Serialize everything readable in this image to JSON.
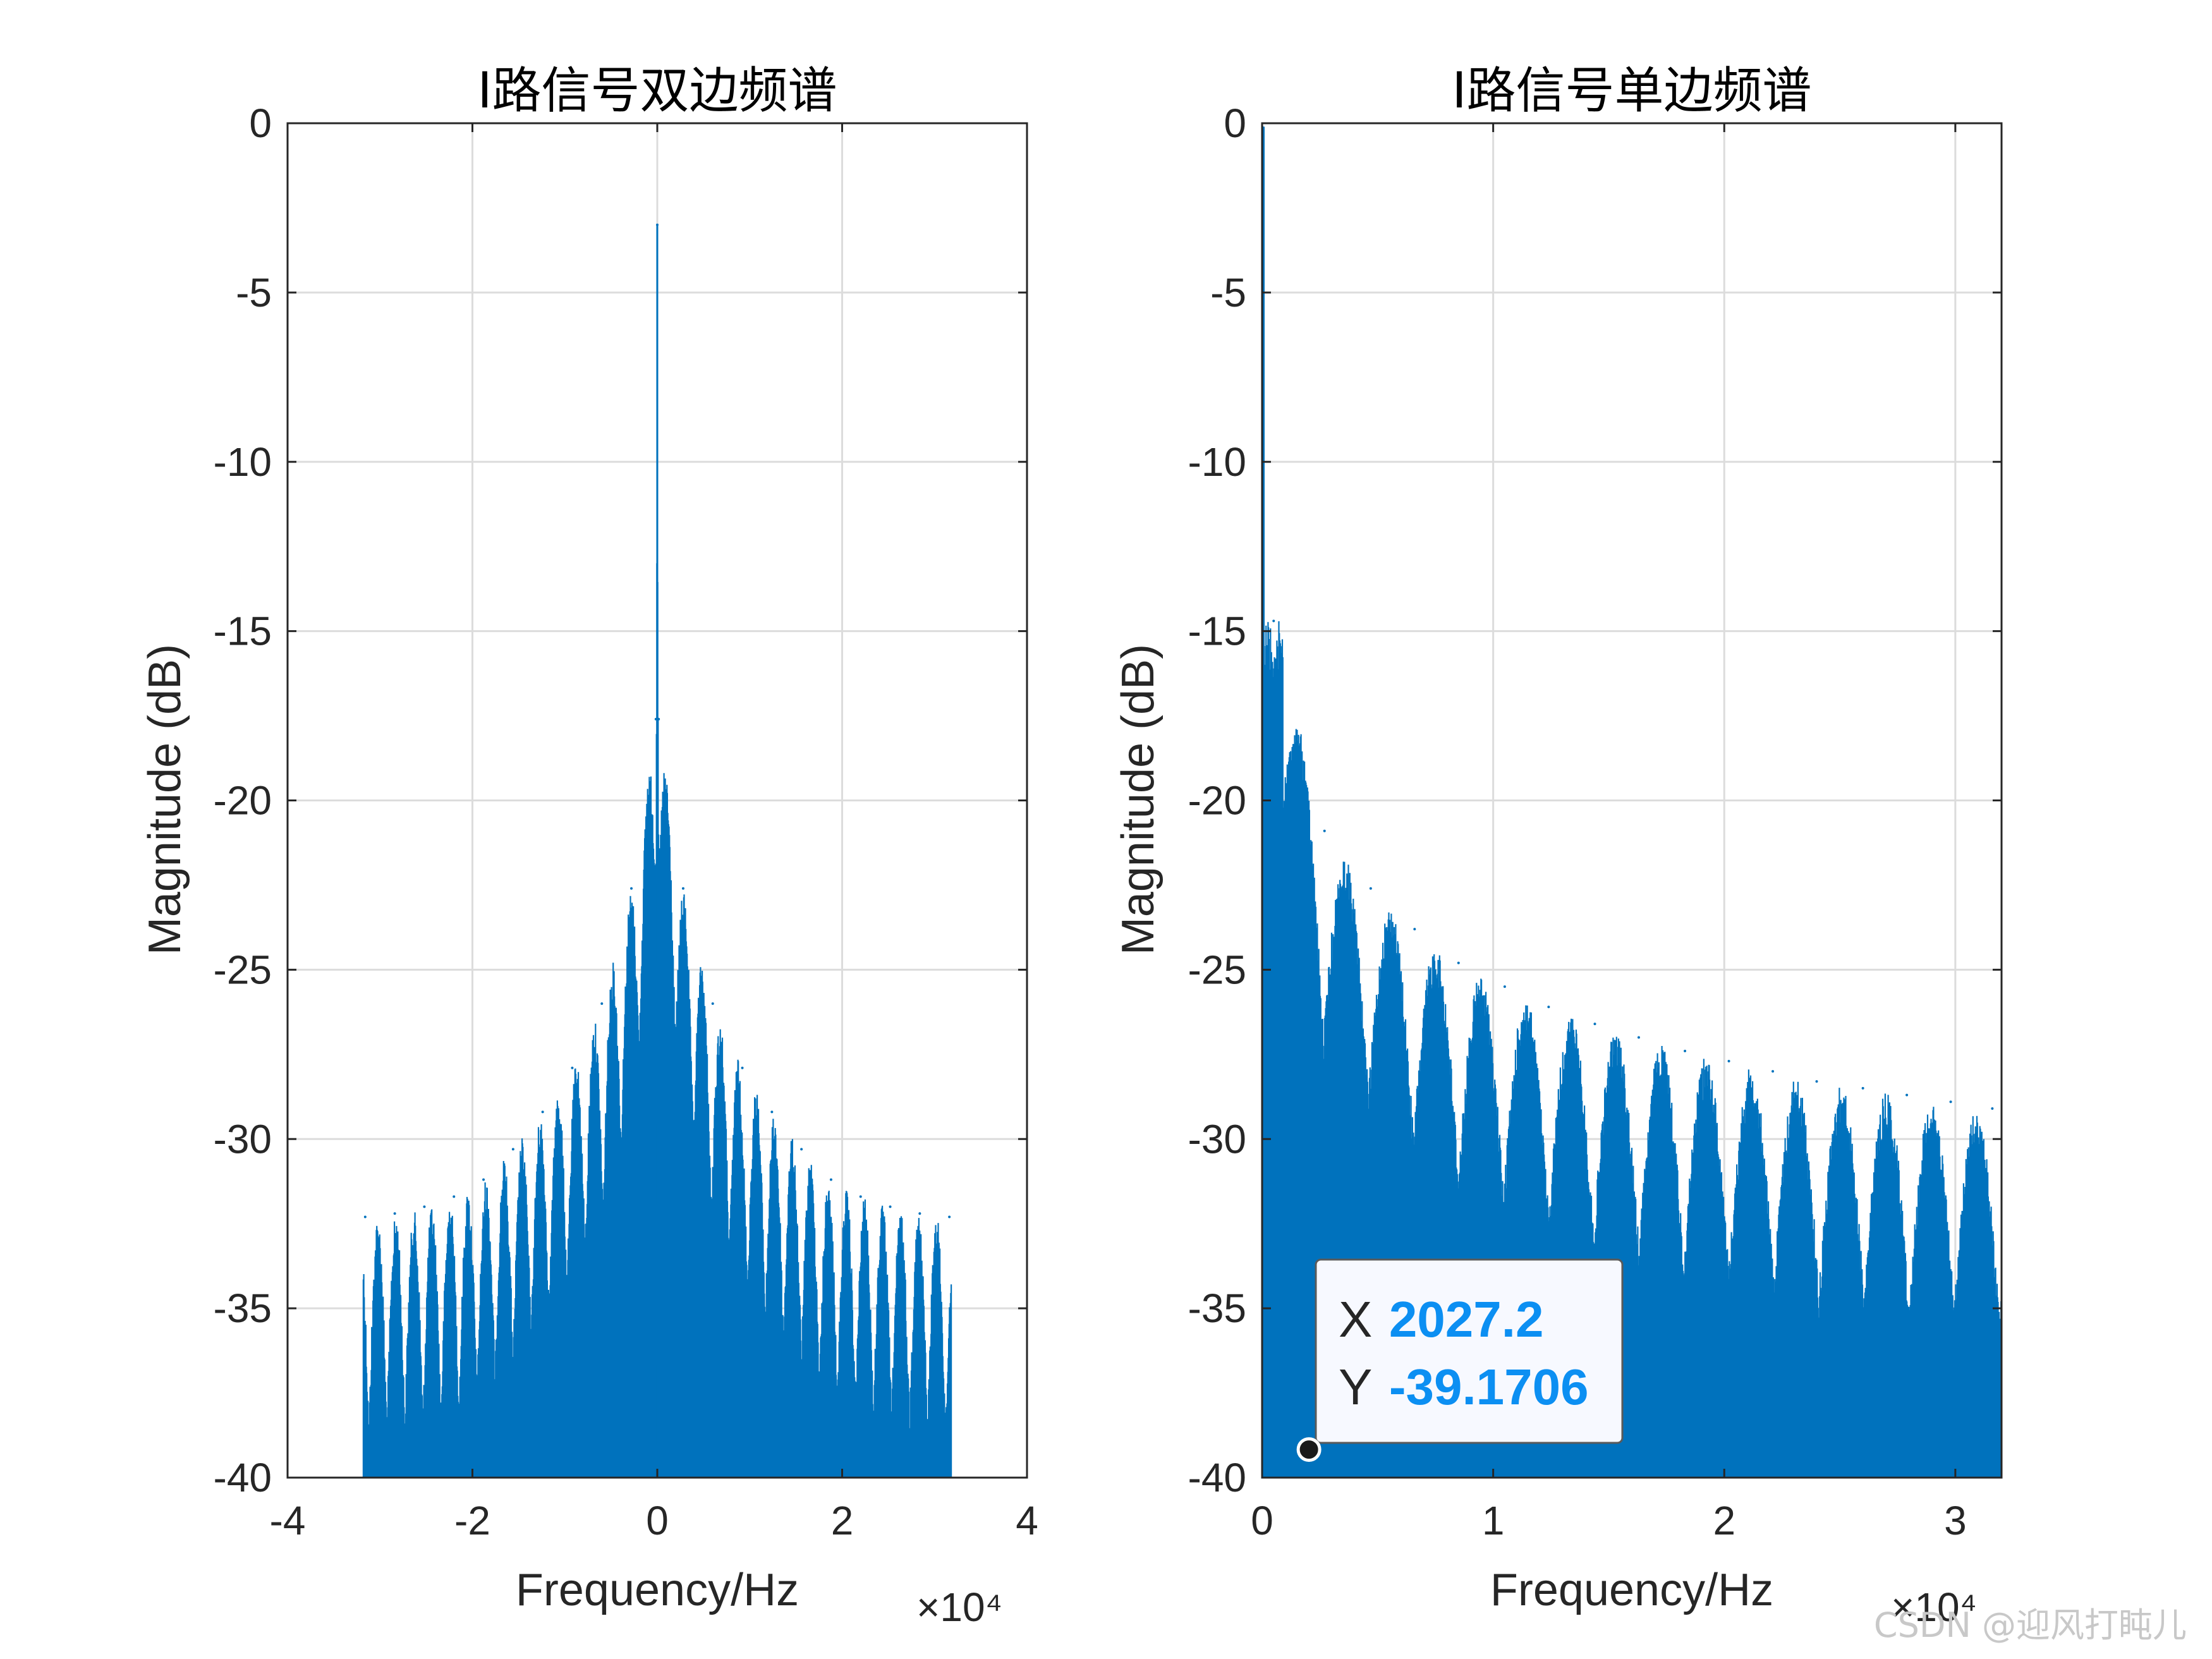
{
  "chart_data": [
    {
      "type": "line",
      "title": "I路信号双边频谱",
      "xlabel": "Frequency/Hz",
      "ylabel": "Magnitude (dB)",
      "x_multiplier": "×10⁴",
      "xlim": [
        -40000,
        40000
      ],
      "ylim": [
        -40,
        0
      ],
      "xticks": [
        -40000,
        -20000,
        0,
        20000,
        40000
      ],
      "xtick_labels": [
        "-4",
        "-2",
        "0",
        "2",
        "4"
      ],
      "yticks": [
        0,
        -5,
        -10,
        -15,
        -20,
        -25,
        -30,
        -35,
        -40
      ],
      "ytick_labels": [
        "0",
        "-5",
        "-10",
        "-15",
        "-20",
        "-25",
        "-30",
        "-35",
        "-40"
      ],
      "grid": true,
      "line_color": "#0072BD",
      "series": [
        {
          "x": [
            -31600,
            -28400,
            -25200,
            -22000,
            -18800,
            -15600,
            -12400,
            -9200,
            -6000,
            -2800,
            -150,
            0,
            150,
            2800,
            6000,
            9200,
            12400,
            15600,
            18800,
            22000,
            25200,
            28400,
            31600
          ],
          "y": [
            -32.3,
            -32.2,
            -32.0,
            -31.7,
            -31.2,
            -30.3,
            -29.2,
            -27.9,
            -26.0,
            -22.6,
            -17.6,
            -3.0,
            -17.6,
            -22.6,
            -26.0,
            -27.9,
            -29.2,
            -30.3,
            -31.2,
            -31.7,
            -32.0,
            -32.2,
            -32.3
          ]
        }
      ]
    },
    {
      "type": "line",
      "title": "I路信号单边频谱",
      "xlabel": "Frequency/Hz",
      "ylabel": "Magnitude (dB)",
      "x_multiplier": "×10⁴",
      "xlim": [
        0,
        32000
      ],
      "ylim": [
        -40,
        0
      ],
      "xticks": [
        0,
        10000,
        20000,
        30000
      ],
      "xtick_labels": [
        "0",
        "1",
        "2",
        "3"
      ],
      "yticks": [
        0,
        -5,
        -10,
        -15,
        -20,
        -25,
        -30,
        -35,
        -40
      ],
      "ytick_labels": [
        "0",
        "-5",
        "-10",
        "-15",
        "-20",
        "-25",
        "-30",
        "-35",
        "-40"
      ],
      "grid": true,
      "line_color": "#0072BD",
      "series": [
        {
          "x": [
            0,
            500,
            2700,
            4700,
            6600,
            8500,
            10500,
            12400,
            14400,
            16300,
            18300,
            20200,
            22100,
            24000,
            26000,
            27900,
            29800,
            31600
          ],
          "y": [
            -0.1,
            -14.7,
            -20.9,
            -22.6,
            -23.8,
            -24.8,
            -25.5,
            -26.1,
            -26.6,
            -27.0,
            -27.4,
            -27.7,
            -28.0,
            -28.3,
            -28.5,
            -28.7,
            -28.9,
            -29.1
          ]
        }
      ],
      "datatip": {
        "x_key": "X",
        "x_value": "2027.2",
        "y_key": "Y",
        "y_value": "-39.1706",
        "x": 2027.2,
        "y": -39.1706
      }
    }
  ],
  "watermark": "CSDN @迎风打盹儿"
}
